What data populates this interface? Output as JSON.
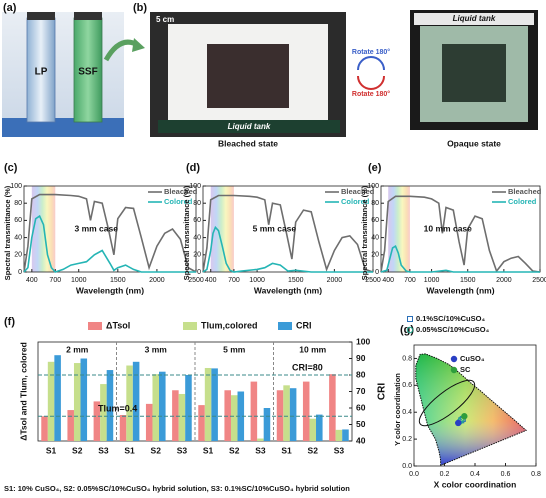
{
  "photo_a": {
    "panel": "(a)",
    "labels": [
      "LP",
      "SSF"
    ]
  },
  "photo_b": {
    "panel": "(b)",
    "scale": "5 cm",
    "tank_top": "Liquid tank",
    "state_left": "Bleached state",
    "rotate_top": "Rotate 180°",
    "rotate_bottom": "Rotate 180°",
    "tank_right": "Liquid tank",
    "state_right": "Opaque state"
  },
  "chart_data": [
    {
      "type": "line",
      "panel": "(c)",
      "xlabel": "Wavelength (nm)",
      "ylabel": "Spectral transmittance (%)",
      "annotation": "3 mm case",
      "xlim": [
        300,
        2500
      ],
      "xticks": [
        400,
        700,
        1000,
        1500,
        2000,
        2500
      ],
      "ylim": [
        0,
        100
      ],
      "yticks": [
        0,
        20,
        40,
        60,
        80,
        100
      ],
      "legend": "upper right",
      "series": [
        {
          "name": "Bleached",
          "color": "#6e6e6e",
          "x": [
            300,
            350,
            400,
            500,
            700,
            900,
            1000,
            1100,
            1150,
            1200,
            1300,
            1380,
            1450,
            1500,
            1600,
            1700,
            1800,
            1900,
            2000,
            2100,
            2200,
            2300,
            2400,
            2500
          ],
          "values": [
            0,
            30,
            85,
            90,
            90,
            89,
            88,
            85,
            60,
            82,
            80,
            50,
            20,
            62,
            75,
            74,
            40,
            5,
            30,
            45,
            50,
            38,
            5,
            0
          ]
        },
        {
          "name": "Colored",
          "color": "#25b5b5",
          "x": [
            300,
            350,
            400,
            450,
            500,
            550,
            600,
            650,
            700,
            800,
            900,
            1000,
            1100,
            1200,
            1300,
            1400,
            1450,
            1500,
            1600,
            1700,
            1800,
            2500
          ],
          "values": [
            0,
            5,
            40,
            62,
            65,
            55,
            20,
            5,
            0,
            3,
            8,
            10,
            12,
            20,
            25,
            10,
            2,
            5,
            8,
            3,
            0,
            0
          ]
        }
      ]
    },
    {
      "type": "line",
      "panel": "(d)",
      "xlabel": "Wavelength (nm)",
      "ylabel": "Spectral transmittance (%)",
      "annotation": "5 mm case",
      "xlim": [
        300,
        2500
      ],
      "xticks": [
        400,
        700,
        1000,
        1500,
        2000,
        2500
      ],
      "ylim": [
        0,
        100
      ],
      "yticks": [
        0,
        20,
        40,
        60,
        80,
        100
      ],
      "legend": "upper right",
      "series": [
        {
          "name": "Bleached",
          "color": "#6e6e6e",
          "x": [
            300,
            350,
            400,
            500,
            700,
            900,
            1000,
            1100,
            1150,
            1200,
            1300,
            1380,
            1450,
            1500,
            1600,
            1700,
            1800,
            1900,
            2000,
            2100,
            2200,
            2300,
            2400,
            2500
          ],
          "values": [
            0,
            28,
            84,
            89,
            89,
            88,
            87,
            84,
            55,
            80,
            78,
            45,
            15,
            58,
            72,
            70,
            35,
            3,
            25,
            40,
            42,
            32,
            3,
            0
          ]
        },
        {
          "name": "Colored",
          "color": "#25b5b5",
          "x": [
            300,
            350,
            400,
            430,
            460,
            500,
            550,
            600,
            650,
            700,
            800,
            1000,
            1100,
            1200,
            1300,
            1400,
            1500,
            1700,
            2500
          ],
          "values": [
            0,
            3,
            25,
            45,
            52,
            48,
            30,
            10,
            2,
            0,
            1,
            3,
            5,
            10,
            8,
            1,
            2,
            0,
            0
          ]
        }
      ]
    },
    {
      "type": "line",
      "panel": "(e)",
      "xlabel": "Wavelength (nm)",
      "ylabel": "Spectral transmittance (%)",
      "annotation": "10 mm case",
      "xlim": [
        300,
        2500
      ],
      "xticks": [
        400,
        700,
        1000,
        1500,
        2000,
        2500
      ],
      "ylim": [
        0,
        100
      ],
      "yticks": [
        0,
        20,
        40,
        60,
        80,
        100
      ],
      "legend": "upper right",
      "series": [
        {
          "name": "Bleached",
          "color": "#6e6e6e",
          "x": [
            300,
            350,
            400,
            500,
            700,
            900,
            1000,
            1100,
            1150,
            1200,
            1300,
            1380,
            1450,
            1500,
            1600,
            1700,
            1800,
            1900,
            2000,
            2100,
            2200,
            2300,
            2400,
            2500
          ],
          "values": [
            0,
            25,
            82,
            88,
            88,
            87,
            85,
            80,
            45,
            75,
            72,
            35,
            8,
            50,
            65,
            62,
            25,
            1,
            12,
            16,
            18,
            10,
            1,
            0
          ]
        },
        {
          "name": "Colored",
          "color": "#25b5b5",
          "x": [
            300,
            380,
            420,
            460,
            500,
            540,
            580,
            650,
            700,
            1000,
            1200,
            1300,
            2500
          ],
          "values": [
            0,
            2,
            15,
            28,
            30,
            22,
            8,
            1,
            0,
            0,
            2,
            0,
            0
          ]
        }
      ]
    },
    {
      "type": "bar",
      "panel": "(f)",
      "ylabel": "ΔTsol and Tlum, colored",
      "y2label": "CRI",
      "groups": [
        "2 mm",
        "3 mm",
        "5 mm",
        "10 mm"
      ],
      "categories": [
        "S1",
        "S2",
        "S3",
        "S1",
        "S2",
        "S3",
        "S1",
        "S2",
        "S3",
        "S1",
        "S2",
        "S3"
      ],
      "ylim": [
        0.2,
        1.0
      ],
      "y2lim": [
        40,
        100
      ],
      "y2ticks": [
        40,
        50,
        60,
        70,
        80,
        90,
        100
      ],
      "legend": "top",
      "series": [
        {
          "name": "ΔTsol",
          "color": "#f08585",
          "values": [
            0.4,
            0.45,
            0.52,
            0.41,
            0.5,
            0.61,
            0.49,
            0.61,
            0.68,
            0.61,
            0.68,
            0.74
          ]
        },
        {
          "name": "Tlum,colored",
          "color": "#c6df8c",
          "values": [
            0.84,
            0.83,
            0.66,
            0.81,
            0.74,
            0.58,
            0.79,
            0.57,
            0.22,
            0.65,
            0.38,
            0.29
          ]
        },
        {
          "name": "CRI",
          "color": "#3b9bd8",
          "axis": "y2",
          "values": [
            92,
            90,
            83,
            88,
            82,
            80,
            84,
            70,
            60,
            72,
            56,
            47
          ]
        }
      ],
      "reference_lines": [
        {
          "label": "CRI=80",
          "value": 80,
          "axis": "y2"
        },
        {
          "label": "Tlum=0.4",
          "value": 0.4,
          "axis": "y"
        }
      ],
      "footnote": "S1: 10% CuSO₄, S2: 0.05%SC/10%CuSO₄ hybrid solution, S3: 0.1%SC/10%CuSO₄ hybrid solution"
    },
    {
      "type": "scatter",
      "panel": "(g)",
      "xlabel": "X color coordination",
      "ylabel": "Y color coordination",
      "xlim": [
        0,
        0.8
      ],
      "xticks": [
        {
          "value": 0,
          "label": "0.0"
        },
        0.2,
        0.4,
        0.6,
        0.8
      ],
      "ylim": [
        0,
        0.9
      ],
      "yticks": [
        {
          "value": 0,
          "label": "0.0"
        },
        0.2,
        0.4,
        0.6,
        0.8
      ],
      "series": [
        {
          "name": "0.1%SC/10%CuSO₄",
          "color": "#2a6fb8",
          "x": [
            0.31,
            0.32
          ],
          "values": [
            0.34,
            0.35
          ]
        },
        {
          "name": "0.05%SC/10%CuSO₄",
          "color": "#22a88e",
          "x": [
            0.3,
            0.31
          ],
          "values": [
            0.33,
            0.345
          ]
        },
        {
          "name": "CuSO₄",
          "color": "#2a3fc4",
          "x": [
            0.29
          ],
          "values": [
            0.32
          ]
        },
        {
          "name": "SC",
          "color": "#2f9e3c",
          "x": [
            0.33
          ],
          "values": [
            0.37
          ]
        }
      ]
    }
  ]
}
